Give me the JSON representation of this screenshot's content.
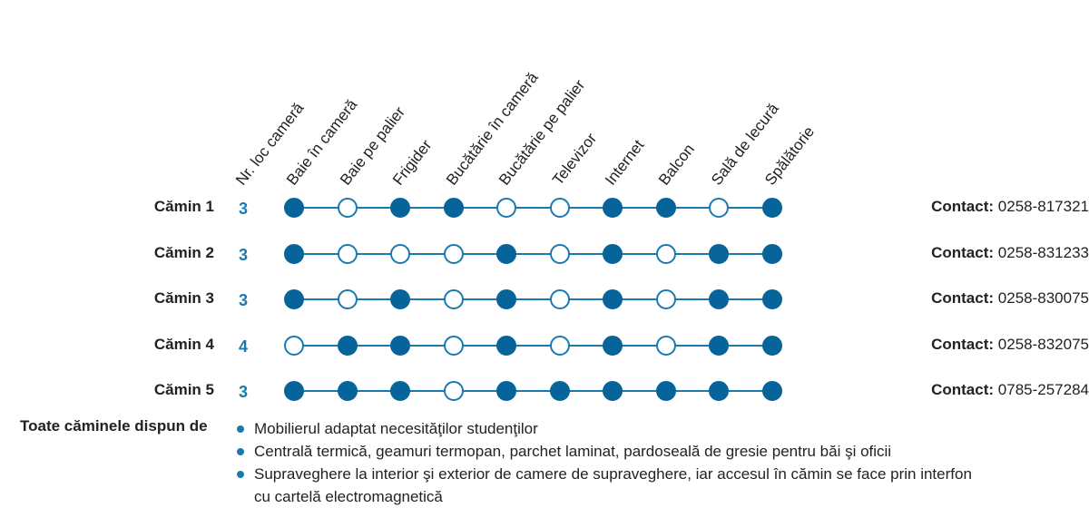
{
  "columns": [
    "Nr. loc cameră",
    "Baie în cameră",
    "Baie pe palier",
    "Frigider",
    "Bucătărie în cameră",
    "Bucătărie pe palier",
    "Televizor",
    "Internet",
    "Balcon",
    "Sală de lecură",
    "Spălătorie"
  ],
  "contact_label": "Contact:",
  "rows": [
    {
      "name": "Cămin 1",
      "loc": "3",
      "amenities": [
        true,
        false,
        true,
        true,
        false,
        false,
        true,
        true,
        false,
        true
      ],
      "phone": "0258-817321"
    },
    {
      "name": "Cămin 2",
      "loc": "3",
      "amenities": [
        true,
        false,
        false,
        false,
        true,
        false,
        true,
        false,
        true,
        true
      ],
      "phone": "0258-831233"
    },
    {
      "name": "Cămin 3",
      "loc": "3",
      "amenities": [
        true,
        false,
        true,
        false,
        true,
        false,
        true,
        false,
        true,
        true
      ],
      "phone": "0258-830075"
    },
    {
      "name": "Cămin 4",
      "loc": "4",
      "amenities": [
        false,
        true,
        true,
        false,
        true,
        false,
        true,
        false,
        true,
        true
      ],
      "phone": "0258-832075"
    },
    {
      "name": "Cămin 5",
      "loc": "3",
      "amenities": [
        true,
        true,
        true,
        false,
        true,
        true,
        true,
        true,
        true,
        true
      ],
      "phone": "0785-257284"
    }
  ],
  "footer": {
    "title": "Toate căminele dispun de",
    "bullets": [
      "Mobilierul adaptat necesităţilor studenţilor",
      "Centrală termică, geamuri termopan, parchet laminat, pardoseală de gresie pentru băi şi oficii",
      "Supraveghere la interior şi exterior de camere de supraveghere, iar accesul în cămin se face prin interfon cu cartelă electromagnetică"
    ]
  },
  "colors": {
    "accent": "#1a7ab0",
    "filled": "#07649b"
  }
}
